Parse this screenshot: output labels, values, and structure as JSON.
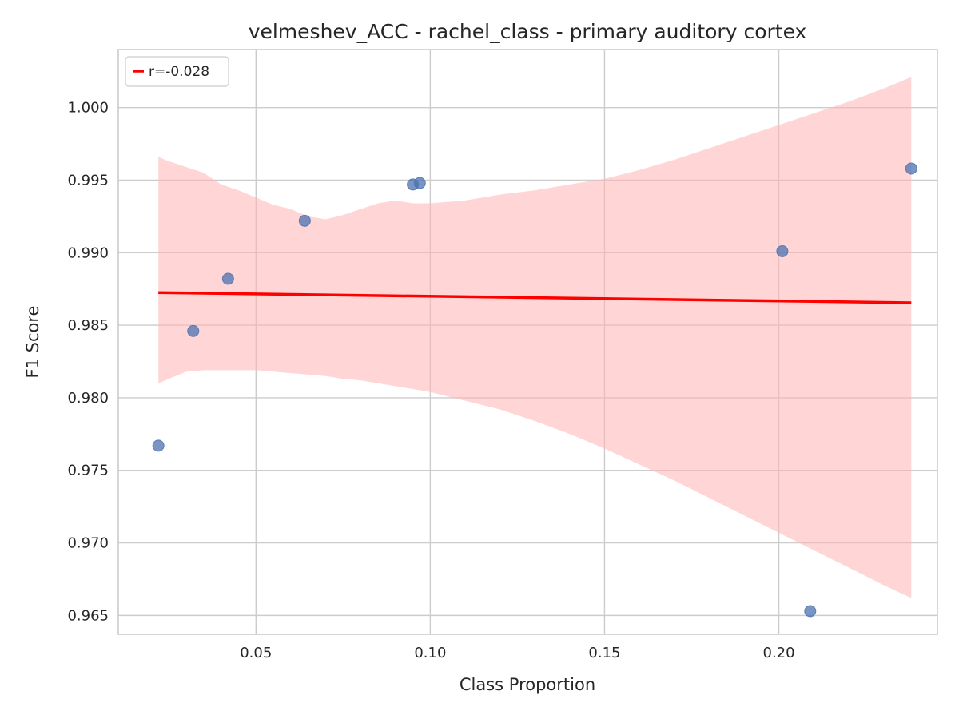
{
  "chart_data": {
    "type": "scatter",
    "title": "velmeshev_ACC - rachel_class - primary auditory cortex",
    "xlabel": "Class Proportion",
    "ylabel": "F1 Score",
    "xlim": [
      0.0105,
      0.2455
    ],
    "ylim": [
      0.9637,
      1.004
    ],
    "xticks": [
      0.05,
      0.1,
      0.15,
      0.2
    ],
    "xtick_labels": [
      "0.05",
      "0.10",
      "0.15",
      "0.20"
    ],
    "yticks": [
      0.965,
      0.97,
      0.975,
      0.98,
      0.985,
      0.99,
      0.995,
      1.0
    ],
    "ytick_labels": [
      "0.965",
      "0.970",
      "0.975",
      "0.980",
      "0.985",
      "0.990",
      "0.995",
      "1.000"
    ],
    "grid": true,
    "legend": {
      "placement": "top-left",
      "entries": [
        "r=-0.028"
      ]
    },
    "colors": {
      "points": "#4c72b0",
      "fit": "#ff0000",
      "band": "#ffb3b3",
      "grid": "#cccccc",
      "frame": "#cccccc"
    },
    "points": {
      "x": [
        0.022,
        0.032,
        0.042,
        0.064,
        0.095,
        0.097,
        0.201,
        0.209,
        0.238
      ],
      "y": [
        0.9767,
        0.9846,
        0.9882,
        0.9922,
        0.9947,
        0.9948,
        0.9901,
        0.9653,
        0.9958
      ]
    },
    "fit_line": {
      "x": [
        0.022,
        0.238
      ],
      "y": [
        0.98725,
        0.98655
      ]
    },
    "confidence_band": {
      "x": [
        0.022,
        0.025,
        0.03,
        0.035,
        0.04,
        0.045,
        0.05,
        0.055,
        0.06,
        0.065,
        0.07,
        0.075,
        0.08,
        0.085,
        0.09,
        0.095,
        0.1,
        0.11,
        0.12,
        0.13,
        0.14,
        0.15,
        0.16,
        0.17,
        0.18,
        0.19,
        0.2,
        0.21,
        0.22,
        0.23,
        0.238
      ],
      "upper": [
        0.9966,
        0.9963,
        0.9959,
        0.9955,
        0.9947,
        0.9943,
        0.9938,
        0.9933,
        0.993,
        0.9925,
        0.9923,
        0.9926,
        0.993,
        0.9934,
        0.9936,
        0.9934,
        0.9934,
        0.9936,
        0.994,
        0.9943,
        0.9947,
        0.9951,
        0.9957,
        0.9964,
        0.9972,
        0.998,
        0.9988,
        0.9996,
        1.0004,
        1.0013,
        1.0021
      ],
      "lower": [
        0.981,
        0.9813,
        0.9818,
        0.9819,
        0.9819,
        0.9819,
        0.9819,
        0.9818,
        0.9817,
        0.9816,
        0.9815,
        0.9813,
        0.9812,
        0.981,
        0.9808,
        0.9806,
        0.9804,
        0.9798,
        0.9792,
        0.9784,
        0.9775,
        0.9765,
        0.9754,
        0.9743,
        0.9731,
        0.9719,
        0.9707,
        0.9695,
        0.9683,
        0.9671,
        0.9662
      ]
    }
  }
}
